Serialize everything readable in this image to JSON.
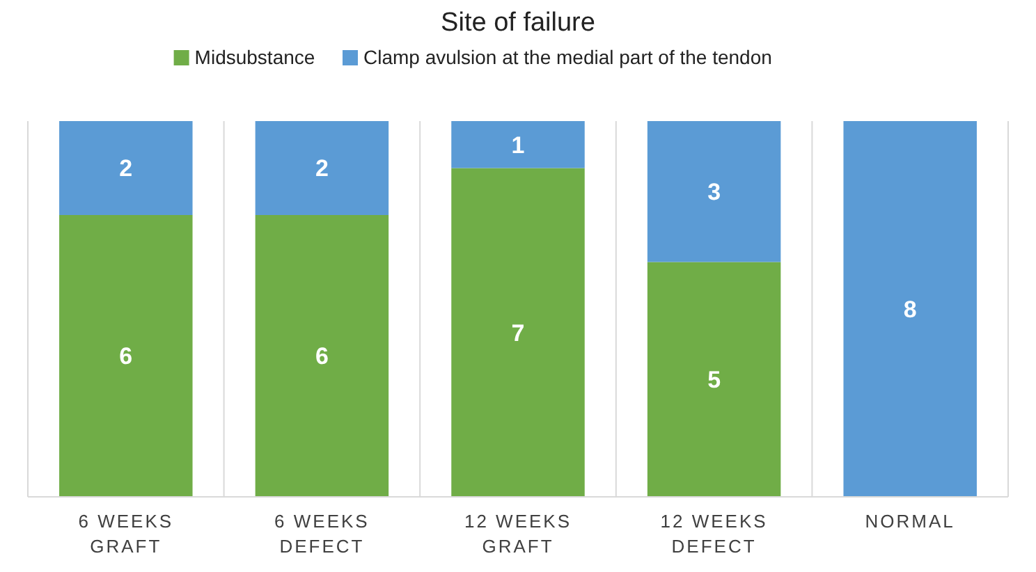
{
  "chart_data": {
    "type": "bar",
    "title": "Site of failure",
    "stacked": true,
    "legend": "top",
    "grid": "x",
    "tick_labels": "x",
    "ylim": [
      0,
      8
    ],
    "categories": [
      "6 WEEKS GRAFT",
      "6 WEEKS DEFECT",
      "12 WEEKS GRAFT",
      "12 WEEKS DEFECT",
      "NORMAL"
    ],
    "series": [
      {
        "name": "Midsubstance",
        "color": "#70ad47",
        "values": [
          6,
          6,
          7,
          5,
          0
        ],
        "value_labels": [
          "6",
          "6",
          "7",
          "5",
          null
        ]
      },
      {
        "name": "Clamp avulsion at the medial part of the tendon",
        "color": "#5b9bd5",
        "values": [
          2,
          2,
          1,
          3,
          8
        ],
        "value_labels": [
          "2",
          "2",
          "1",
          "3",
          "8"
        ]
      }
    ]
  }
}
